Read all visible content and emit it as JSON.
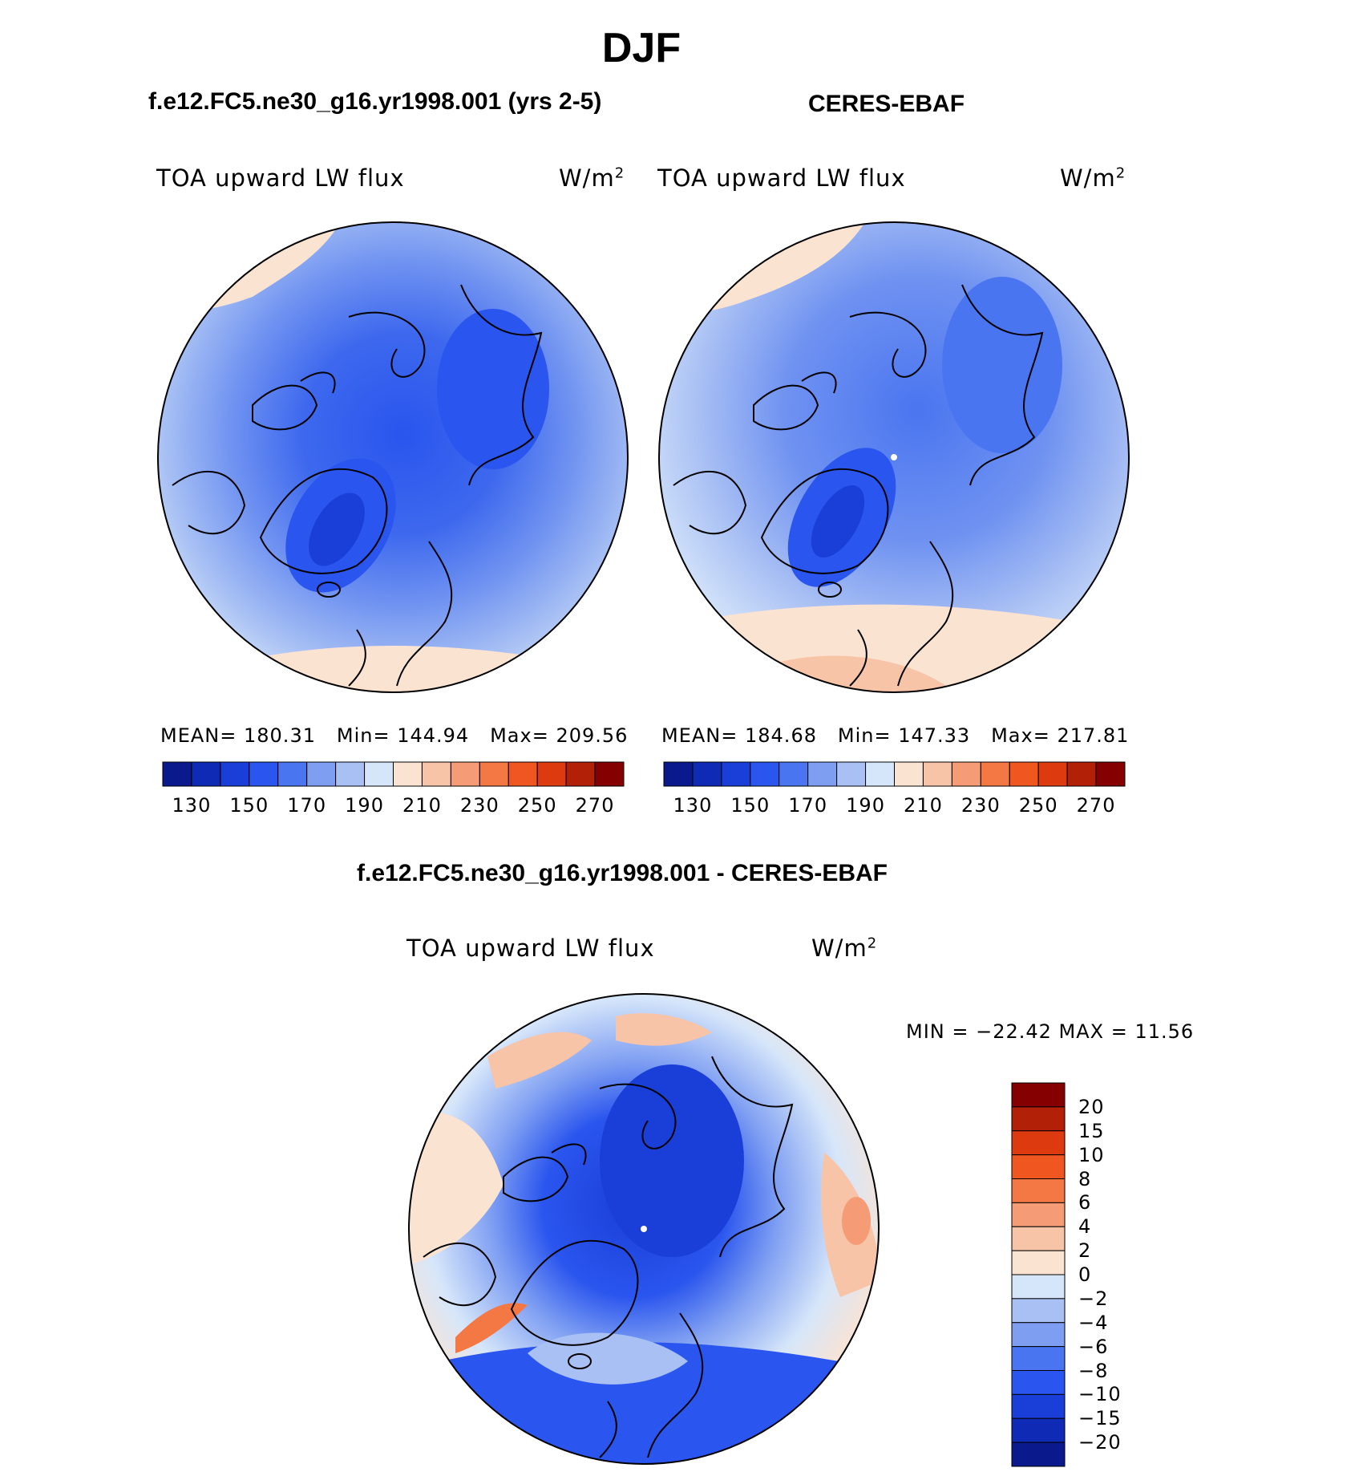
{
  "main_title": "DJF",
  "panels": [
    {
      "case_title": "f.e12.FC5.ne30_g16.yr1998.001 (yrs 2-5)",
      "left_label": "TOA upward LW flux",
      "unit_label": "W/m",
      "unit_sup": "2",
      "stats": {
        "mean_label": "MEAN=",
        "mean": "180.31",
        "min_label": "Min=",
        "min": "144.94",
        "max_label": "Max=",
        "max": "209.56"
      }
    },
    {
      "case_title": "CERES-EBAF",
      "left_label": "TOA upward LW flux",
      "unit_label": "W/m",
      "unit_sup": "2",
      "stats": {
        "mean_label": "MEAN=",
        "mean": "184.68",
        "min_label": "Min=",
        "min": "147.33",
        "max_label": "Max=",
        "max": "217.81"
      }
    }
  ],
  "abs_colorbar": {
    "tick_labels": [
      "130",
      "150",
      "170",
      "190",
      "210",
      "230",
      "250",
      "270"
    ],
    "colors": [
      "#0a1a8c",
      "#0f2ab4",
      "#1a3ed8",
      "#2a55ee",
      "#4a75f0",
      "#7e9ef2",
      "#a9c0f4",
      "#d6e6fa",
      "#fbe3d2",
      "#f8c4a8",
      "#f59c76",
      "#f47843",
      "#ef5620",
      "#de3a10",
      "#b22008",
      "#850000"
    ]
  },
  "diff": {
    "title": "f.e12.FC5.ne30_g16.yr1998.001 - CERES-EBAF",
    "left_label": "TOA upward LW flux",
    "unit_label": "W/m",
    "unit_sup": "2",
    "minmax": "MIN = −22.42 MAX =  11.56",
    "colorbar": {
      "tick_labels": [
        "20",
        "15",
        "10",
        "8",
        "6",
        "4",
        "2",
        "0",
        "−2",
        "−4",
        "−6",
        "−8",
        "−10",
        "−15",
        "−20"
      ],
      "colors": [
        "#850000",
        "#b22008",
        "#de3a10",
        "#ef5620",
        "#f47843",
        "#f59c76",
        "#f8c4a8",
        "#fbe3d2",
        "#d6e6fa",
        "#a9c0f4",
        "#7e9ef2",
        "#4a75f0",
        "#2a55ee",
        "#1a3ed8",
        "#0f2ab4",
        "#0a1a8c"
      ]
    }
  }
}
